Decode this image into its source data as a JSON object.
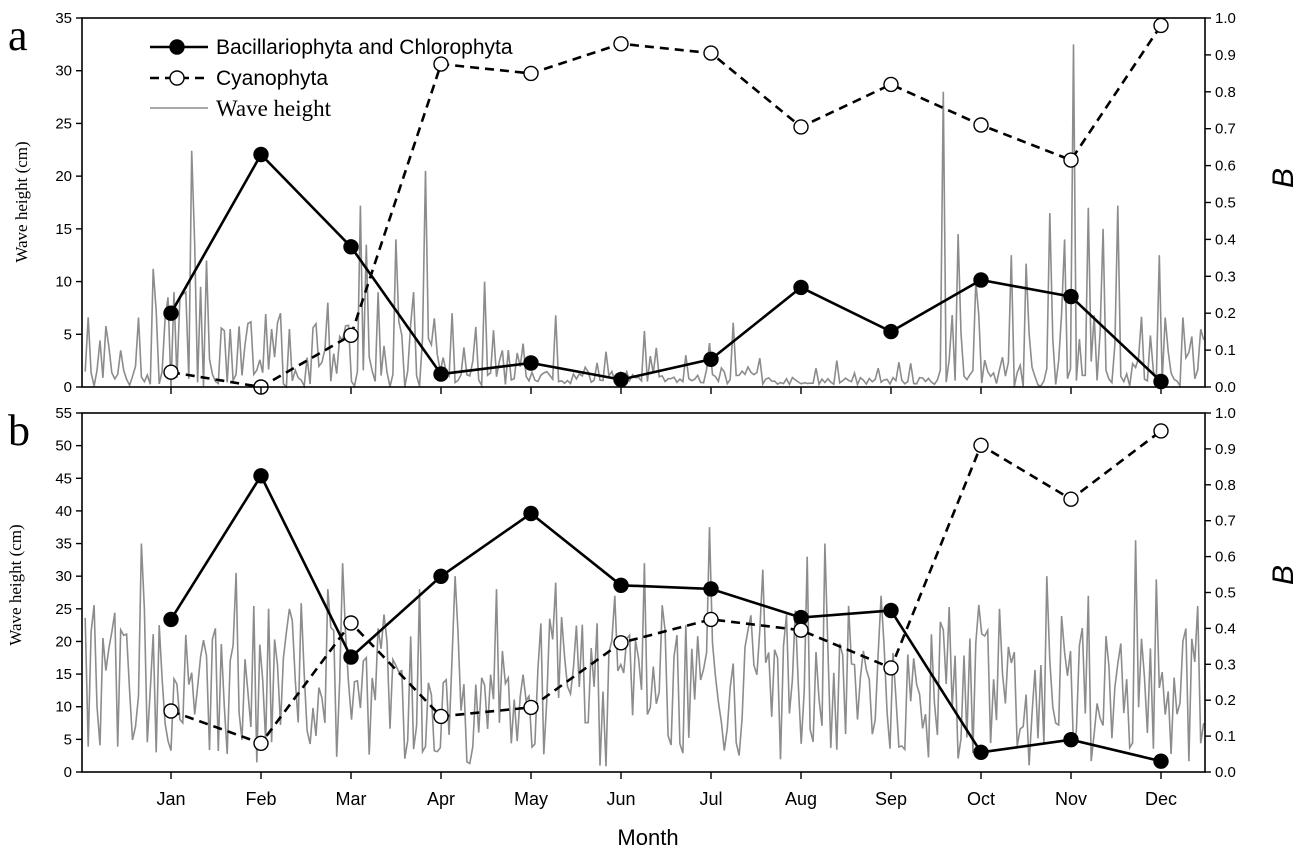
{
  "chart_data": [
    {
      "panel": "a",
      "type": "line",
      "xlabel": "",
      "ylabel_left": "Wave height (cm)",
      "ylabel_right": "B",
      "categories": [
        "Jan",
        "Feb",
        "Mar",
        "Apr",
        "May",
        "Jun",
        "Jul",
        "Aug",
        "Sep",
        "Oct",
        "Nov",
        "Dec"
      ],
      "y_left_lim": [
        0,
        35
      ],
      "y_left_ticks": [
        0,
        5,
        10,
        15,
        20,
        25,
        30,
        35
      ],
      "y_right_lim": [
        0,
        1.0
      ],
      "y_right_ticks": [
        "0.0",
        "0.1",
        "0.2",
        "0.3",
        "0.4",
        "0.5",
        "0.6",
        "0.7",
        "0.8",
        "0.9",
        "1.0"
      ],
      "legend_position": "top-left",
      "legend": [
        {
          "name": "Bacillariophyta and Chlorophyta",
          "style": "solid-filled"
        },
        {
          "name": "Cyanophyta",
          "style": "dashed-open"
        },
        {
          "name": "Wave height",
          "style": "gray-line"
        }
      ],
      "series": [
        {
          "name": "Bacillariophyta and Chlorophyta",
          "axis": "right",
          "values": [
            0.2,
            0.63,
            0.38,
            0.035,
            0.065,
            0.02,
            0.075,
            0.27,
            0.15,
            0.29,
            0.245,
            0.015
          ]
        },
        {
          "name": "Cyanophyta",
          "axis": "right",
          "values": [
            0.04,
            0.0,
            0.14,
            0.875,
            0.85,
            0.93,
            0.905,
            0.705,
            0.82,
            0.71,
            0.615,
            0.98
          ]
        },
        {
          "name": "Wave height",
          "axis": "left",
          "regime": "calm",
          "peaks": [
            [
              -6,
              11.2
            ],
            [
              -5,
              7.2
            ],
            [
              -2,
              6.5
            ],
            [
              -1,
              8.5
            ],
            [
              1,
              9
            ],
            [
              3,
              8.5
            ],
            [
              4,
              8.8
            ],
            [
              5,
              9
            ],
            [
              7,
              22.4
            ],
            [
              8,
              13.5
            ],
            [
              10,
              9.5
            ],
            [
              12,
              12
            ],
            [
              17,
              5.6
            ],
            [
              20,
              5.5
            ],
            [
              25,
              4
            ],
            [
              34,
              5.5
            ],
            [
              37,
              7
            ],
            [
              40,
              5.5
            ],
            [
              49,
              6
            ],
            [
              53,
              8
            ],
            [
              59,
              5.8
            ],
            [
              64,
              17.2
            ],
            [
              66,
              13.5
            ],
            [
              70,
              9
            ],
            [
              76,
              14
            ],
            [
              82,
              9
            ],
            [
              86,
              20.5
            ],
            [
              88,
              4
            ],
            [
              95,
              7
            ],
            [
              106,
              10
            ],
            [
              130,
              6.8
            ],
            [
              160,
              5.3
            ],
            [
              190,
              6.1
            ],
            [
              225,
              2.5
            ],
            [
              261,
              28
            ],
            [
              266,
              14.5
            ],
            [
              272,
              10
            ],
            [
              284,
              12.5
            ],
            [
              289,
              11.7
            ],
            [
              297,
              16.5
            ],
            [
              302,
              14
            ],
            [
              305,
              32.5
            ],
            [
              310,
              17
            ],
            [
              315,
              15
            ],
            [
              320,
              17.2
            ],
            [
              334,
              12.5
            ],
            [
              342,
              6.6
            ],
            [
              350,
              5.5
            ],
            [
              355,
              5.6
            ]
          ]
        }
      ]
    },
    {
      "panel": "b",
      "type": "line",
      "xlabel": "Month",
      "ylabel_left": "Wave height (cm)",
      "ylabel_right": "B",
      "categories": [
        "Jan",
        "Feb",
        "Mar",
        "Apr",
        "May",
        "Jun",
        "Jul",
        "Aug",
        "Sep",
        "Oct",
        "Nov",
        "Dec"
      ],
      "y_left_lim": [
        0,
        55
      ],
      "y_left_ticks": [
        0,
        5,
        10,
        15,
        20,
        25,
        30,
        35,
        40,
        45,
        50,
        55
      ],
      "y_right_lim": [
        0,
        1.0
      ],
      "y_right_ticks": [
        "0.0",
        "0.1",
        "0.2",
        "0.3",
        "0.4",
        "0.5",
        "0.6",
        "0.7",
        "0.8",
        "0.9",
        "1.0"
      ],
      "series": [
        {
          "name": "Bacillariophyta and Chlorophyta",
          "axis": "right",
          "values": [
            0.425,
            0.825,
            0.32,
            0.545,
            0.72,
            0.52,
            0.51,
            0.43,
            0.45,
            0.055,
            0.09,
            0.03
          ]
        },
        {
          "name": "Cyanophyta",
          "axis": "right",
          "values": [
            0.17,
            0.08,
            0.415,
            0.155,
            0.18,
            0.36,
            0.425,
            0.395,
            0.29,
            0.91,
            0.76,
            0.95
          ]
        },
        {
          "name": "Wave height",
          "axis": "left",
          "regime": "choppy",
          "peaks": [
            [
              -10,
              35
            ],
            [
              -4,
              22.5
            ],
            [
              5,
              21
            ],
            [
              15,
              22
            ],
            [
              22,
              30.5
            ],
            [
              40,
              25
            ],
            [
              53,
              28
            ],
            [
              58,
              32
            ],
            [
              70,
              22
            ],
            [
              84,
              28
            ],
            [
              96,
              30
            ],
            [
              110,
              28
            ],
            [
              130,
              29
            ],
            [
              150,
              27
            ],
            [
              160,
              32
            ],
            [
              182,
              37.5
            ],
            [
              200,
              31
            ],
            [
              215,
              33
            ],
            [
              221,
              35
            ],
            [
              240,
              27
            ],
            [
              260,
              23
            ],
            [
              280,
              25
            ],
            [
              296,
              30
            ],
            [
              310,
              27
            ],
            [
              326,
              35.5
            ],
            [
              333,
              29.5
            ],
            [
              342,
              20
            ]
          ]
        }
      ]
    }
  ]
}
